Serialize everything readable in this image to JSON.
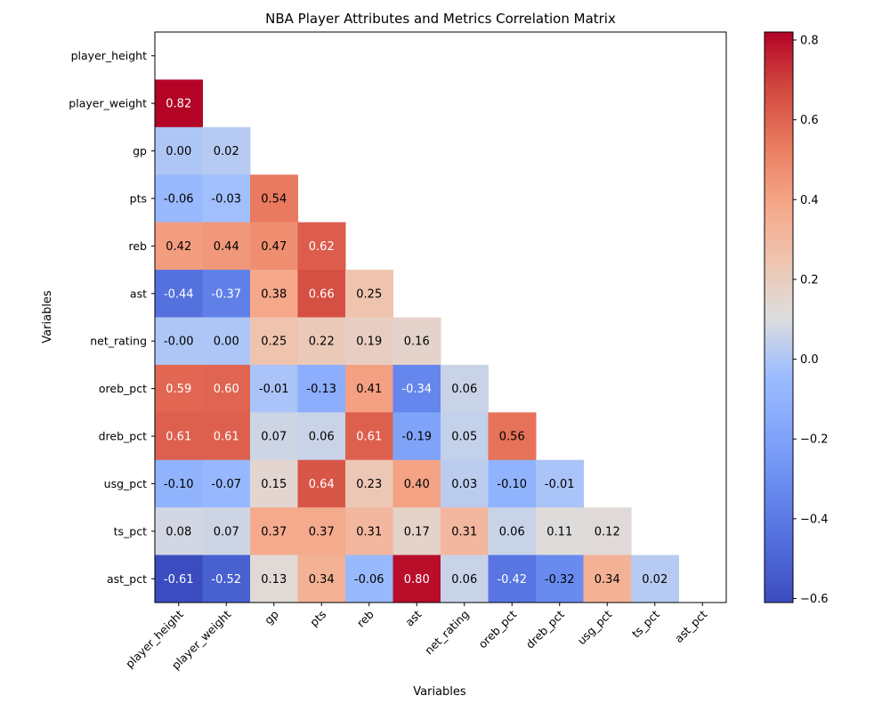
{
  "chart_data": {
    "type": "heatmap",
    "title": "NBA Player Attributes and Metrics Correlation Matrix",
    "xlabel": "Variables",
    "ylabel": "Variables",
    "colormap": "coolwarm",
    "vmin": -0.61,
    "vmax": 0.82,
    "categories": [
      "player_height",
      "player_weight",
      "gp",
      "pts",
      "reb",
      "ast",
      "net_rating",
      "oreb_pct",
      "dreb_pct",
      "usg_pct",
      "ts_pct",
      "ast_pct"
    ],
    "lower_triangle": [
      [],
      [
        0.82
      ],
      [
        0.0,
        0.02
      ],
      [
        -0.06,
        -0.03,
        0.54
      ],
      [
        0.42,
        0.44,
        0.47,
        0.62
      ],
      [
        -0.44,
        -0.37,
        0.38,
        0.66,
        0.25
      ],
      [
        -0.0,
        0.0,
        0.25,
        0.22,
        0.19,
        0.16
      ],
      [
        0.59,
        0.6,
        -0.01,
        -0.13,
        0.41,
        -0.34,
        0.06
      ],
      [
        0.61,
        0.61,
        0.07,
        0.06,
        0.61,
        -0.19,
        0.05,
        0.56
      ],
      [
        -0.1,
        -0.07,
        0.15,
        0.64,
        0.23,
        0.4,
        0.03,
        -0.1,
        -0.01
      ],
      [
        0.08,
        0.07,
        0.37,
        0.37,
        0.31,
        0.17,
        0.31,
        0.06,
        0.11,
        0.12
      ],
      [
        -0.61,
        -0.52,
        0.13,
        0.34,
        -0.06,
        0.8,
        0.06,
        -0.42,
        -0.32,
        0.34,
        0.02
      ]
    ],
    "value_labels": [
      [],
      [
        "0.82"
      ],
      [
        "0.00",
        "0.02"
      ],
      [
        "-0.06",
        "-0.03",
        "0.54"
      ],
      [
        "0.42",
        "0.44",
        "0.47",
        "0.62"
      ],
      [
        "-0.44",
        "-0.37",
        "0.38",
        "0.66",
        "0.25"
      ],
      [
        "-0.00",
        "0.00",
        "0.25",
        "0.22",
        "0.19",
        "0.16"
      ],
      [
        "0.59",
        "0.60",
        "-0.01",
        "-0.13",
        "0.41",
        "-0.34",
        "0.06"
      ],
      [
        "0.61",
        "0.61",
        "0.07",
        "0.06",
        "0.61",
        "-0.19",
        "0.05",
        "0.56"
      ],
      [
        "-0.10",
        "-0.07",
        "0.15",
        "0.64",
        "0.23",
        "0.40",
        "0.03",
        "-0.10",
        "-0.01"
      ],
      [
        "0.08",
        "0.07",
        "0.37",
        "0.37",
        "0.31",
        "0.17",
        "0.31",
        "0.06",
        "0.11",
        "0.12"
      ],
      [
        "-0.61",
        "-0.52",
        "0.13",
        "0.34",
        "-0.06",
        "0.80",
        "0.06",
        "-0.42",
        "-0.32",
        "0.34",
        "0.02"
      ]
    ],
    "colorbar_ticks": [
      {
        "value": 0.8,
        "label": "0.8"
      },
      {
        "value": 0.6,
        "label": "0.6"
      },
      {
        "value": 0.4,
        "label": "0.4"
      },
      {
        "value": 0.2,
        "label": "0.2"
      },
      {
        "value": 0.0,
        "label": "0.0"
      },
      {
        "value": -0.2,
        "label": "−0.2"
      },
      {
        "value": -0.4,
        "label": "−0.4"
      },
      {
        "value": -0.6,
        "label": "−0.6"
      }
    ]
  }
}
